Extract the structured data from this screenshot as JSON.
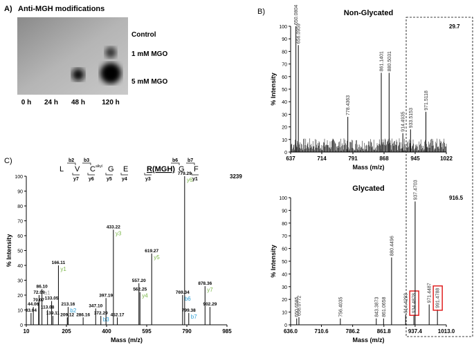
{
  "panel_a": {
    "label": "A)",
    "title": "Anti-MGH modifications",
    "rows": [
      "Control",
      "1 mM MGO",
      "5 mM MGO"
    ],
    "columns": [
      "0 h",
      "24 h",
      "48 h",
      "120 h"
    ]
  },
  "panel_b_label": "B)",
  "panel_c_label": "C)",
  "peptide": {
    "residues": [
      "L",
      "V",
      "C",
      "G",
      "E",
      "R(MGH)",
      "G",
      "F"
    ],
    "modifier": "alkyl",
    "b_ions": [
      "b2",
      "b3",
      "b6",
      "b7"
    ],
    "y_ions": [
      "y7",
      "y6",
      "y5",
      "y4",
      "y3",
      "y1"
    ]
  },
  "ion_colors": {
    "a": "#a0a0a0",
    "b": "#2a9fd6",
    "y": "#7ab648"
  },
  "chart_data": [
    {
      "type": "spectrum",
      "title": "Non-Glycated",
      "x_label": "Mass (m/z)",
      "y_label": "% Intensity",
      "intensity_max": 29.7,
      "label_orientation": "vertical",
      "noise": true,
      "xlim": [
        637,
        1022
      ],
      "xticks": [
        637,
        714,
        791,
        868,
        945,
        1022
      ],
      "ylim": [
        0,
        100
      ],
      "yticks": [
        0,
        10,
        20,
        30,
        40,
        50,
        60,
        70,
        80,
        90,
        100
      ],
      "color": "#000000",
      "x": [
        650.0804,
        656.0959,
        778.4363,
        861.1401,
        880.5031,
        914.4935,
        933.5153,
        971.5118
      ],
      "x_labels": [
        "650.0804",
        "656.0959",
        "778.4363",
        "861.1401",
        "880.5031",
        "914.4935",
        "933.5153",
        "971.5118"
      ],
      "values": [
        100,
        85,
        28,
        63,
        63,
        15,
        18,
        32
      ]
    },
    {
      "type": "spectrum",
      "title": "Glycated",
      "x_label": "Mass (m/z)",
      "y_label": "% Intensity",
      "intensity_max": 916.5,
      "label_orientation": "vertical",
      "noise": false,
      "box_color": "#e02020",
      "xlim": [
        636,
        1013
      ],
      "xticks": [
        {
          "value": 636,
          "label": "636.0"
        },
        710.6,
        786.2,
        861.8,
        937.4,
        {
          "value": 1013,
          "label": "1013.0"
        }
      ],
      "ylim": [
        0,
        100
      ],
      "yticks": [
        0,
        10,
        20,
        30,
        40,
        50,
        60,
        70,
        80,
        90,
        100
      ],
      "color": "#000000",
      "x": [
        650.6585,
        656.0772,
        756.4035,
        843.3873,
        861.0658,
        880.4496,
        914.4293,
        934.4878,
        937.4703,
        971.4487,
        991.4788
      ],
      "x_labels": [
        "650.6585",
        "656.0772",
        "756.4035",
        "843.3873",
        "861.0658",
        "880.4496",
        "914.4293",
        "934.4878",
        "937.4703",
        "971.4487",
        "991.4788"
      ],
      "values": [
        5,
        6,
        5,
        5,
        5,
        53,
        8,
        8,
        97,
        16,
        12
      ],
      "boxed": [
        false,
        false,
        false,
        false,
        false,
        false,
        false,
        true,
        false,
        false,
        true
      ]
    },
    {
      "type": "spectrum",
      "x_label": "Mass (m/z)",
      "y_label": "% Intensity",
      "intensity_max": 3239,
      "label_orientation": "horizontal",
      "noise": false,
      "xlim": [
        10,
        985
      ],
      "xticks": [
        10,
        205,
        400,
        595,
        790,
        985
      ],
      "ylim": [
        0,
        100
      ],
      "yticks": [
        0,
        10,
        20,
        30,
        40,
        50,
        60,
        70,
        80,
        90,
        100
      ],
      "color": "#000000",
      "x": [
        33.04,
        44.06,
        70.07,
        72.09,
        86.1,
        113.08,
        133.05,
        139.11,
        166.11,
        209.12,
        213.16,
        286.16,
        347.1,
        372.29,
        397.19,
        433.22,
        452.17,
        557.2,
        562.25,
        619.27,
        769.34,
        779.29,
        799.38,
        878.36,
        902.29
      ],
      "x_labels": [
        "33.04",
        "44.06",
        "70.07",
        "72.09",
        "86.10",
        "113.08",
        "133.05",
        "139.11",
        "166.11",
        "209.12",
        "213.16",
        "286.16",
        "347.10",
        "372.29",
        "397.19",
        "433.22",
        "452.17",
        "557.20",
        "562.25",
        "619.27",
        "769.34",
        "779.29",
        "799.38",
        "878.36",
        "902.29"
      ],
      "values": [
        8,
        12,
        15,
        20,
        24,
        10,
        16,
        6,
        40,
        5,
        12,
        5,
        11,
        6,
        18,
        64,
        5,
        28,
        22,
        48,
        20,
        100,
        8,
        26,
        12
      ],
      "ions": [
        null,
        null,
        null,
        null,
        "a1",
        null,
        null,
        null,
        "y1",
        null,
        "b2",
        null,
        null,
        "b3",
        null,
        "y3",
        null,
        null,
        "y4",
        "y5",
        "b6",
        "y6",
        "b7",
        "y7",
        null
      ]
    }
  ]
}
